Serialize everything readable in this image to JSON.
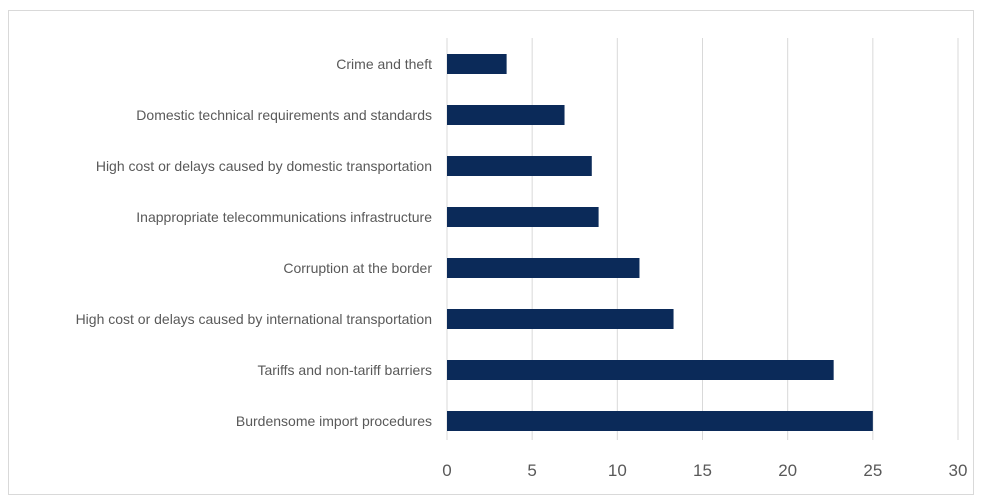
{
  "chart_data": {
    "type": "bar",
    "orientation": "horizontal",
    "categories": [
      "Crime and theft",
      "Domestic technical requirements and standards",
      "High cost or delays caused by domestic transportation",
      "Inappropriate telecommunications infrastructure",
      "Corruption at the border",
      "High cost or delays caused by international transportation",
      "Tariffs and non-tariff barriers",
      "Burdensome import procedures"
    ],
    "values": [
      3.5,
      6.9,
      8.5,
      8.9,
      11.3,
      13.3,
      22.7,
      25.0
    ],
    "xlim": [
      0,
      30
    ],
    "xticks": [
      0,
      5,
      10,
      15,
      20,
      25,
      30
    ],
    "grid": "vertical",
    "legend": "none",
    "bar_color": "#0b2a59",
    "grid_color": "#d9d9d9"
  }
}
